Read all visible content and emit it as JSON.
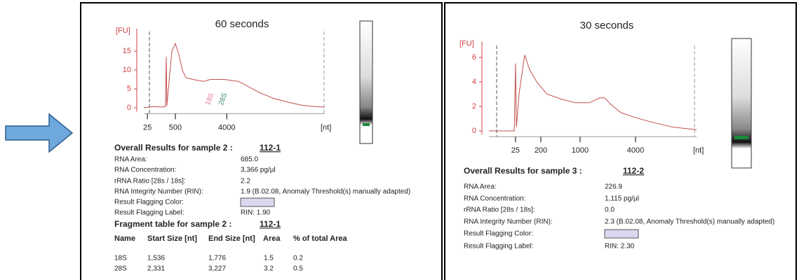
{
  "chart_data": [
    {
      "type": "line",
      "title": "60 seconds",
      "y_label": "[FU]",
      "x_label": "[nt]",
      "color": "#c0504d",
      "x": [
        0,
        5,
        9.7,
        12,
        12.5,
        12.8,
        13.6,
        15.6,
        17.5,
        19.5,
        21.4,
        23.3,
        27.2,
        33.1,
        37,
        44.7,
        52.5,
        58.4,
        64.2,
        72,
        79.8,
        87.5,
        95.3,
        100
      ],
      "values": [
        0,
        0.3,
        0.2,
        0.3,
        13.5,
        0.5,
        5,
        15,
        17,
        14,
        10,
        8,
        7.5,
        7,
        7.5,
        7.5,
        7,
        5.5,
        4,
        2.5,
        1.5,
        0.7,
        0.3,
        0.2
      ],
      "xlim": [
        0,
        100
      ],
      "ylim": [
        -1,
        20
      ],
      "xticks": [
        {
          "value": 2,
          "label": "25"
        },
        {
          "value": 17.5,
          "label": "500"
        },
        {
          "value": 46,
          "label": "4000"
        }
      ],
      "yticks": [
        0,
        5,
        10,
        15
      ],
      "annotations": [
        {
          "text": "18S",
          "x": 35.4,
          "color": "#e07aa0"
        },
        {
          "text": "28S",
          "x": 42.8,
          "color": "#3a8a6a"
        }
      ]
    },
    {
      "type": "line",
      "title": "30 seconds",
      "y_label": "[FU]",
      "x_label": "[nt]",
      "color": "#c0504d",
      "x": [
        0,
        12.2,
        12.8,
        13.2,
        14.5,
        17.2,
        19.6,
        23,
        28,
        34.8,
        41.6,
        48.3,
        53.4,
        55.7,
        58.4,
        63.5,
        70.3,
        78.7,
        88.9,
        100
      ],
      "values": [
        0,
        0,
        5.5,
        0.3,
        3,
        6.2,
        5,
        4,
        3,
        2.6,
        2.3,
        2.3,
        2.7,
        2.7,
        2.2,
        1.5,
        1.1,
        0.7,
        0.3,
        0.1
      ],
      "xlim": [
        0,
        100
      ],
      "ylim": [
        -0.3,
        7
      ],
      "xticks": [
        {
          "value": 12.8,
          "label": "25"
        },
        {
          "value": 25,
          "label": "200"
        },
        {
          "value": 43.9,
          "label": "1000"
        },
        {
          "value": 70.6,
          "label": "4000"
        }
      ],
      "yticks": [
        0,
        2,
        4,
        6
      ],
      "annotations": []
    }
  ],
  "results": [
    {
      "heading": "Overall Results for sample 2  :",
      "sample": "112-1",
      "rows": [
        {
          "label": "RNA Area:",
          "value": "685.0"
        },
        {
          "label": "RNA Concentration:",
          "value": "3,366 pg/µl"
        },
        {
          "label": "rRNA Ratio [28s / 18s]:",
          "value": "2.2"
        },
        {
          "label": "RNA Integrity Number (RIN):",
          "value": "1.9   (B.02.08, Anomaly Threshold(s) manually adapted)"
        },
        {
          "label": "Result Flagging Color:"
        },
        {
          "label": "Result Flagging Label:",
          "value": "RIN: 1.90"
        }
      ]
    },
    {
      "heading": "Overall Results for sample 3  :",
      "sample": "112-2",
      "rows": [
        {
          "label": "RNA Area:",
          "value": "226.9"
        },
        {
          "label": "RNA Concentration:",
          "value": "1,115 pg/µl"
        },
        {
          "label": "rRNA Ratio [28s / 18s]:",
          "value": "0.0"
        },
        {
          "label": "RNA Integrity Number (RIN):",
          "value": "2.3   (B.02.08, Anomaly Threshold(s) manually adapted)"
        },
        {
          "label": "Result Flagging Color:"
        },
        {
          "label": "Result Flagging Label:",
          "value": "RIN: 2.30"
        }
      ]
    }
  ],
  "fragment_table": {
    "heading": "Fragment table for sample 2  :",
    "sample": "112-1",
    "columns": [
      "Name",
      "Start Size [nt]",
      "End Size [nt]",
      "Area",
      "% of total Area"
    ],
    "rows": [
      [
        "18S",
        "1,536",
        "1,776",
        "1.5",
        "0.2"
      ],
      [
        "28S",
        "2,331",
        "3,227",
        "3.2",
        "0.5"
      ]
    ]
  }
}
